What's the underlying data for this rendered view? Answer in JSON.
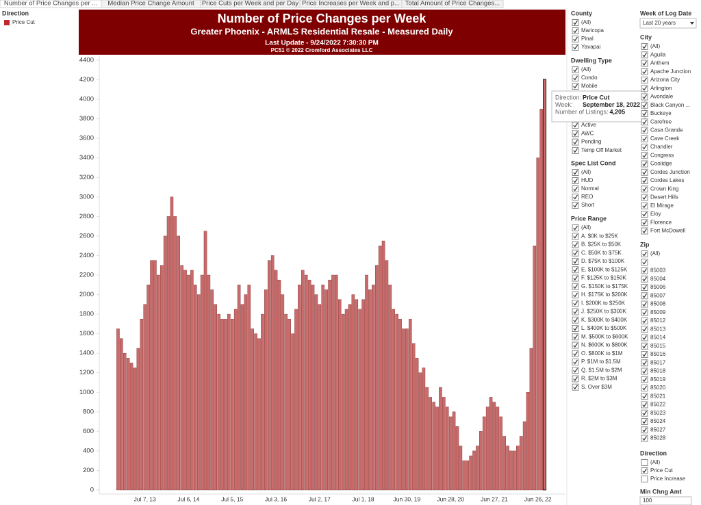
{
  "tabs": [
    "Number of Price Changes per ...",
    "Median Price Change Amount",
    "Price Cuts per Week and per Day",
    "Price Increases per Week and p...",
    "Total Amount of Price Changes..."
  ],
  "legend": {
    "title": "Direction",
    "items": [
      "Price Cut"
    ]
  },
  "chart_data": {
    "type": "bar",
    "title": "Number of Price Changes per Week",
    "subtitle": "Greater Phoenix - ARMLS Residential Resale - Measured Daily",
    "update": "Last Update - 9/24/2022 7:30:30 PM",
    "credit": "PC51 © 2022 Cromford Associates LLC",
    "color": "#c96b6b",
    "categories": [
      null,
      null,
      null,
      null,
      null,
      null,
      null,
      null,
      "Jul 7, 13",
      null,
      null,
      null,
      null,
      null,
      null,
      null,
      null,
      null,
      null,
      null,
      null,
      "Jul 6, 14",
      null,
      null,
      null,
      null,
      null,
      null,
      null,
      null,
      null,
      null,
      null,
      null,
      "Jul 5, 15",
      null,
      null,
      null,
      null,
      null,
      null,
      null,
      null,
      null,
      null,
      null,
      null,
      "Jul 3, 16",
      null,
      null,
      null,
      null,
      null,
      null,
      null,
      null,
      null,
      null,
      null,
      null,
      "Jul 2, 17",
      null,
      null,
      null,
      null,
      null,
      null,
      null,
      null,
      null,
      null,
      null,
      null,
      "Jul 1, 18",
      null,
      null,
      null,
      null,
      null,
      null,
      null,
      null,
      null,
      null,
      null,
      null,
      "Jun 30, 19",
      null,
      null,
      null,
      null,
      null,
      null,
      null,
      null,
      null,
      null,
      null,
      null,
      "Jun 28, 20",
      null,
      null,
      null,
      null,
      null,
      null,
      null,
      null,
      null,
      null,
      null,
      null,
      "Jun 27, 21",
      null,
      null,
      null,
      null,
      null,
      null,
      null,
      null,
      null,
      null,
      null,
      null,
      "Jun 26, 22",
      null,
      null
    ],
    "values": [
      1650,
      1550,
      1400,
      1350,
      1300,
      1250,
      1450,
      1750,
      1900,
      2100,
      2350,
      2350,
      2200,
      2300,
      2600,
      2800,
      3000,
      2800,
      2600,
      2300,
      2250,
      2200,
      2250,
      2100,
      2000,
      2200,
      2650,
      2200,
      2050,
      1900,
      1800,
      1750,
      1750,
      1800,
      1750,
      1850,
      2100,
      1900,
      2000,
      2100,
      1650,
      1600,
      1550,
      1800,
      2050,
      2350,
      2400,
      2250,
      2150,
      2000,
      1800,
      1750,
      1600,
      1850,
      2100,
      2250,
      2200,
      2150,
      2100,
      2000,
      1900,
      2100,
      2050,
      2150,
      2200,
      2200,
      1950,
      1800,
      1850,
      1900,
      2000,
      1950,
      1850,
      1950,
      2200,
      2050,
      2100,
      2300,
      2500,
      2550,
      2350,
      2100,
      1850,
      1800,
      1750,
      1650,
      1650,
      1750,
      1500,
      1350,
      1200,
      1250,
      1050,
      950,
      900,
      850,
      1050,
      950,
      850,
      750,
      800,
      650,
      450,
      300,
      300,
      350,
      400,
      450,
      600,
      750,
      850,
      950,
      900,
      850,
      750,
      550,
      450,
      400,
      400,
      450,
      550,
      700,
      1000,
      1450,
      2500,
      3400,
      3900,
      4205
    ],
    "ylim": [
      0,
      4400
    ],
    "yticks": [
      0,
      200,
      400,
      600,
      800,
      1000,
      1200,
      1400,
      1600,
      1800,
      2000,
      2200,
      2400,
      2600,
      2800,
      3000,
      3200,
      3400,
      3600,
      3800,
      4000,
      4200,
      4400
    ],
    "tooltip": [
      {
        "label": "Direction:",
        "value": "Price Cut"
      },
      {
        "label": "Week:",
        "value": "September 18, 2022"
      },
      {
        "label": "Number of Listings:",
        "value": "4,205"
      }
    ]
  },
  "filters": {
    "groups": [
      {
        "title": "County",
        "items": [
          {
            "label": "(All)",
            "checked": true
          },
          {
            "label": "Maricopa",
            "checked": true
          },
          {
            "label": "Pinal",
            "checked": true
          },
          {
            "label": "Yavapai",
            "checked": true
          }
        ]
      },
      {
        "title": "Dwelling Type",
        "items": [
          {
            "label": "(All)",
            "checked": true
          },
          {
            "label": "Condo",
            "checked": true
          },
          {
            "label": "Mobile",
            "checked": true
          }
        ]
      },
      {
        "items": [
          {
            "label": "Active",
            "checked": true
          },
          {
            "label": "AWC",
            "checked": true
          },
          {
            "label": "Pending",
            "checked": true
          },
          {
            "label": "Temp Off Market",
            "checked": true
          }
        ]
      },
      {
        "title": "Spec List Cond",
        "items": [
          {
            "label": "(All)",
            "checked": true
          },
          {
            "label": "HUD",
            "checked": true
          },
          {
            "label": "Normal",
            "checked": true
          },
          {
            "label": "REO",
            "checked": true
          },
          {
            "label": "Short",
            "checked": true
          }
        ]
      },
      {
        "title": "Price Range",
        "items": [
          {
            "label": "(All)",
            "checked": true
          },
          {
            "label": "A. $0K to $25K",
            "checked": true
          },
          {
            "label": "B. $25K to $50K",
            "checked": true
          },
          {
            "label": "C. $50K to $75K",
            "checked": true
          },
          {
            "label": "D. $75K to $100K",
            "checked": true
          },
          {
            "label": "E. $100K to $125K",
            "checked": true
          },
          {
            "label": "F. $125K to $150K",
            "checked": true
          },
          {
            "label": "G. $150K to $175K",
            "checked": true
          },
          {
            "label": "H. $175K to $200K",
            "checked": true
          },
          {
            "label": "I. $200K to $250K",
            "checked": true
          },
          {
            "label": "J. $250K to $300K",
            "checked": true
          },
          {
            "label": "K. $300K to $400K",
            "checked": true
          },
          {
            "label": "L. $400K to $500K",
            "checked": true
          },
          {
            "label": "M. $500K to $600K",
            "checked": true
          },
          {
            "label": "N. $600K to $800K",
            "checked": true
          },
          {
            "label": "O. $800K to $1M",
            "checked": true
          },
          {
            "label": "P. $1M to $1.5M",
            "checked": true
          },
          {
            "label": "Q. $1.5M to $2M",
            "checked": true
          },
          {
            "label": "R. $2M to $3M",
            "checked": true
          },
          {
            "label": "S. Over $3M",
            "checked": true
          }
        ]
      },
      {
        "title": "City",
        "items": [
          {
            "label": "(All)",
            "checked": true
          },
          {
            "label": "Aguila",
            "checked": true
          },
          {
            "label": "Anthem",
            "checked": true
          },
          {
            "label": "Apache Junction",
            "checked": true
          },
          {
            "label": "Arizona City",
            "checked": true
          },
          {
            "label": "Arlington",
            "checked": true
          },
          {
            "label": "Avondale",
            "checked": true
          },
          {
            "label": "Black Canyon ...",
            "checked": true
          },
          {
            "label": "Buckeye",
            "checked": true
          },
          {
            "label": "Carefree",
            "checked": true
          },
          {
            "label": "Casa Grande",
            "checked": true
          },
          {
            "label": "Cave Creek",
            "checked": true
          },
          {
            "label": "Chandler",
            "checked": true
          },
          {
            "label": "Congress",
            "checked": true
          },
          {
            "label": "Coolidge",
            "checked": true
          },
          {
            "label": "Cordes Junction",
            "checked": true
          },
          {
            "label": "Cordes Lakes",
            "checked": true
          },
          {
            "label": "Crown King",
            "checked": true
          },
          {
            "label": "Desert Hills",
            "checked": true
          },
          {
            "label": "El Mirage",
            "checked": true
          },
          {
            "label": "Eloy",
            "checked": true
          },
          {
            "label": "Florence",
            "checked": true
          },
          {
            "label": "Fort McDowell",
            "checked": true
          }
        ]
      },
      {
        "title": "Zip",
        "items": [
          {
            "label": "(All)",
            "checked": true
          },
          {
            "label": "85003",
            "checked": true
          },
          {
            "label": "85004",
            "checked": true
          },
          {
            "label": "85006",
            "checked": true
          },
          {
            "label": "85007",
            "checked": true
          },
          {
            "label": "85008",
            "checked": true
          },
          {
            "label": "85009",
            "checked": true
          },
          {
            "label": "85012",
            "checked": true
          },
          {
            "label": "85013",
            "checked": true
          },
          {
            "label": "85014",
            "checked": true
          },
          {
            "label": "85015",
            "checked": true
          },
          {
            "label": "85016",
            "checked": true
          },
          {
            "label": "85017",
            "checked": true
          },
          {
            "label": "85018",
            "checked": true
          },
          {
            "label": "85019",
            "checked": true
          },
          {
            "label": "85020",
            "checked": true
          },
          {
            "label": "85021",
            "checked": true
          },
          {
            "label": "85022",
            "checked": true
          },
          {
            "label": "85023",
            "checked": true
          },
          {
            "label": "85024",
            "checked": true
          },
          {
            "label": "85027",
            "checked": true
          },
          {
            "label": "85028",
            "checked": true
          }
        ]
      },
      {
        "title": "Direction",
        "items": [
          {
            "label": "(All)",
            "checked": false
          },
          {
            "label": "Price Cut",
            "checked": true
          },
          {
            "label": "Price Increase",
            "checked": false
          }
        ]
      }
    ],
    "week": {
      "title": "Week of Log Date",
      "value": "Last 20 years"
    },
    "min_change": {
      "title": "Min Chng Amt",
      "value": "100"
    }
  }
}
